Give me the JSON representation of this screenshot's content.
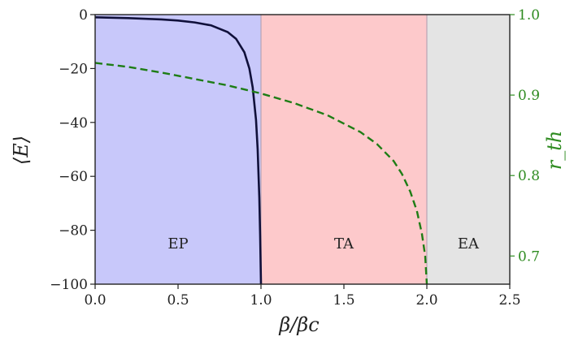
{
  "chart_data": {
    "type": "line",
    "xlabel": "β/βc",
    "ylabel": "⟨E⟩",
    "ylabel_right": "r_th",
    "xlim": [
      0.0,
      2.5
    ],
    "ylim": [
      -100,
      0
    ],
    "ylim_right": [
      0.665,
      1.0
    ],
    "x_ticks": [
      "0.0",
      "0.5",
      "1.0",
      "1.5",
      "2.0",
      "2.5"
    ],
    "x_tick_values": [
      0.0,
      0.5,
      1.0,
      1.5,
      2.0,
      2.5
    ],
    "y_ticks": [
      "0",
      "−20",
      "−40",
      "−60",
      "−80",
      "−100"
    ],
    "y_tick_values": [
      0,
      -20,
      -40,
      -60,
      -80,
      -100
    ],
    "y_ticks_right": [
      "1.0",
      "0.9",
      "0.8",
      "0.7"
    ],
    "y_tick_values_right": [
      1.0,
      0.9,
      0.8,
      0.7
    ],
    "grid": false,
    "regions": [
      {
        "label": "EP",
        "x": [
          0.0,
          1.0
        ],
        "color": "#c8c8fa"
      },
      {
        "label": "TA",
        "x": [
          1.0,
          2.0
        ],
        "color": "#fdc9cb"
      },
      {
        "label": "EA",
        "x": [
          2.0,
          2.5
        ],
        "color": "#e4e4e4"
      }
    ],
    "series": [
      {
        "axis": "left",
        "style": "solid",
        "color": "#10103a",
        "x": [
          0.0,
          0.2,
          0.4,
          0.5,
          0.6,
          0.7,
          0.8,
          0.85,
          0.9,
          0.93,
          0.95,
          0.97,
          0.98,
          0.99,
          0.995,
          1.0
        ],
        "y": [
          -1.0,
          -1.3,
          -1.8,
          -2.2,
          -2.9,
          -4.0,
          -6.5,
          -9.0,
          -14.0,
          -20.0,
          -27.0,
          -39.0,
          -50.0,
          -68.0,
          -82.0,
          -100.0
        ]
      },
      {
        "axis": "right",
        "style": "dashed",
        "color": "#1e7d15",
        "x": [
          0.0,
          0.2,
          0.4,
          0.6,
          0.8,
          1.0,
          1.2,
          1.4,
          1.6,
          1.7,
          1.8,
          1.85,
          1.9,
          1.94,
          1.97,
          1.99,
          2.0
        ],
        "y": [
          0.94,
          0.935,
          0.928,
          0.92,
          0.912,
          0.902,
          0.89,
          0.875,
          0.854,
          0.839,
          0.818,
          0.802,
          0.78,
          0.756,
          0.728,
          0.7,
          0.665
        ]
      }
    ]
  }
}
